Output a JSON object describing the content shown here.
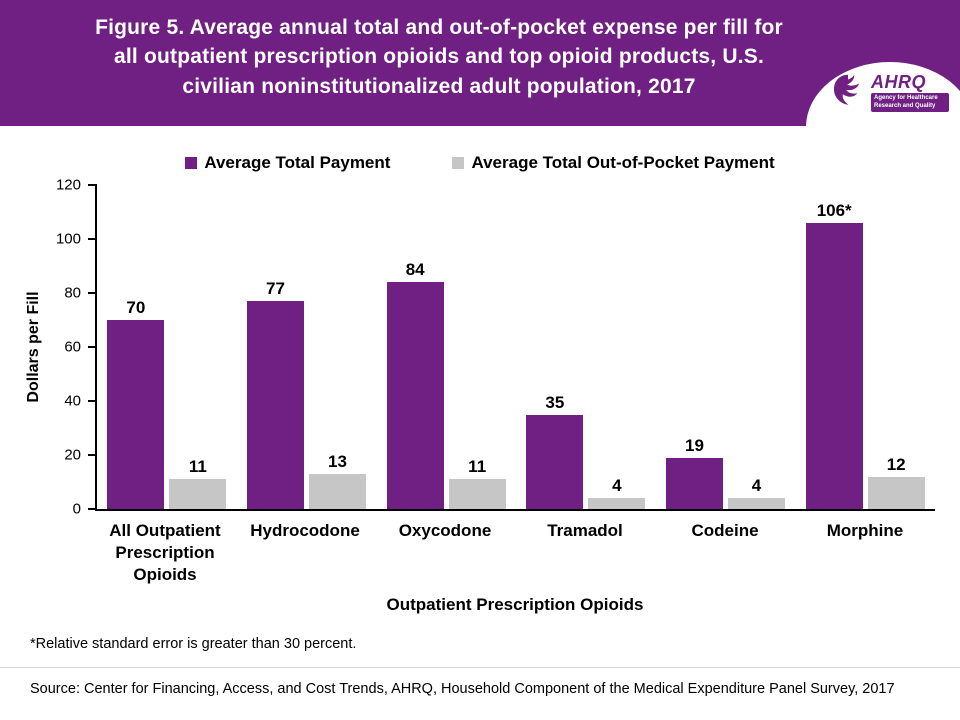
{
  "header": {
    "title_lines": [
      "Figure 5. Average annual total and out-of-pocket expense per fill for",
      "all outpatient prescription opioids and top opioid products, U.S.",
      "civilian noninstitutionalized adult population, 2017"
    ],
    "background": "#702082",
    "logo": {
      "name": "AHRQ",
      "tagline": "Agency for Healthcare Research and Quality"
    }
  },
  "chart_data": {
    "type": "bar",
    "title": "Figure 5. Average annual total and out-of-pocket expense per fill for all outpatient prescription opioids and top opioid products, U.S. civilian noninstitutionalized adult population, 2017",
    "categories": [
      "All Outpatient Prescription Opioids",
      "Hydrocodone",
      "Oxycodone",
      "Tramadol",
      "Codeine",
      "Morphine"
    ],
    "series": [
      {
        "name": "Average Total Payment",
        "color": "#702082",
        "values": [
          70,
          77,
          84,
          35,
          19,
          106
        ],
        "labels": [
          "70",
          "77",
          "84",
          "35",
          "19",
          "106*"
        ]
      },
      {
        "name": "Average Total Out-of-Pocket Payment",
        "color": "#c6c6c6",
        "values": [
          11,
          13,
          11,
          4,
          4,
          12
        ],
        "labels": [
          "11",
          "13",
          "11",
          "4",
          "4",
          "12"
        ]
      }
    ],
    "xlabel": "Outpatient Prescription Opioids",
    "ylabel": "Dollars per Fill",
    "ylim": [
      0,
      120
    ],
    "yticks": [
      0,
      20,
      40,
      60,
      80,
      100,
      120
    ],
    "grid": false,
    "legend_position": "top"
  },
  "footnote": "*Relative standard error is greater than 30 percent.",
  "source": "Source: Center for Financing, Access, and Cost Trends, AHRQ, Household Component of the Medical Expenditure Panel Survey, 2017"
}
